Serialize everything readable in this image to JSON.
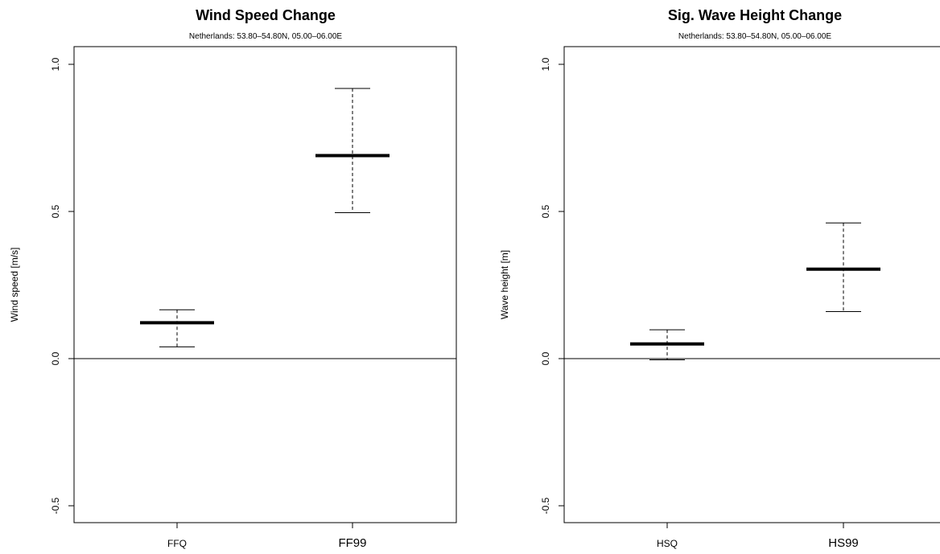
{
  "chart_data": [
    {
      "type": "errorbar",
      "title": "Wind Speed Change",
      "subtitle": "Netherlands: 53.80–54.80N, 05.00–06.00E",
      "xlabel": "",
      "ylabel": "Wind speed [m/s]",
      "ylim": [
        -0.55,
        1.0
      ],
      "yticks": [
        -0.5,
        0.0,
        0.5,
        1.0
      ],
      "ytick_labels": [
        "-0.5",
        "0.0",
        "0.5",
        "1.0"
      ],
      "reference_line": 0.0,
      "categories": [
        "FFQ",
        "FF99"
      ],
      "points": [
        {
          "label": "FFQ",
          "value": 0.122,
          "lower": 0.04,
          "upper": 0.166
        },
        {
          "label": "FF99",
          "value": 0.69,
          "lower": 0.496,
          "upper": 0.918
        }
      ]
    },
    {
      "type": "errorbar",
      "title": "Sig. Wave Height Change",
      "subtitle": "Netherlands: 53.80–54.80N, 05.00–06.00E",
      "xlabel": "",
      "ylabel": "Wave height [m]",
      "ylim": [
        -0.55,
        1.0
      ],
      "yticks": [
        -0.5,
        0.0,
        0.5,
        1.0
      ],
      "ytick_labels": [
        "-0.5",
        "0.0",
        "0.5",
        "1.0"
      ],
      "reference_line": 0.0,
      "categories": [
        "HSQ",
        "HS99"
      ],
      "points": [
        {
          "label": "HSQ",
          "value": 0.05,
          "lower": -0.004,
          "upper": 0.098
        },
        {
          "label": "HS99",
          "value": 0.304,
          "lower": 0.16,
          "upper": 0.461
        }
      ]
    }
  ]
}
